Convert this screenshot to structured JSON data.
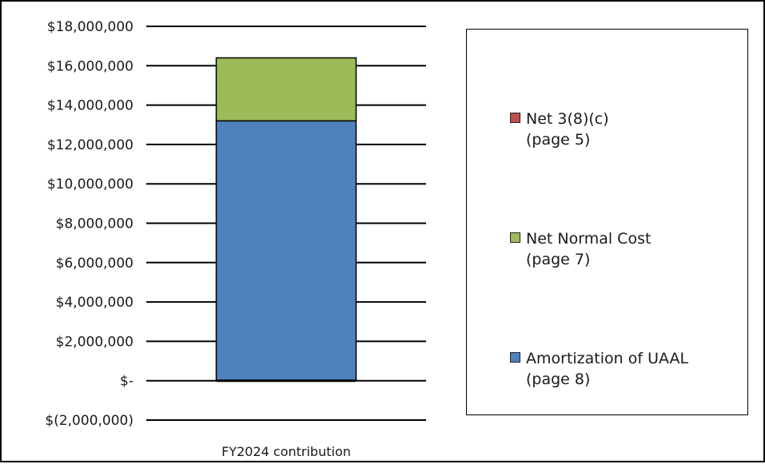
{
  "chart_data": {
    "type": "bar",
    "stacked": true,
    "categories": [
      "FY2024 contribution"
    ],
    "series": [
      {
        "name": "Net 3(8)(c)",
        "name_note": "(page 5)",
        "values": [
          0
        ],
        "color": "#c0504d"
      },
      {
        "name": "Net Normal Cost",
        "name_note": "(page 7)",
        "values": [
          3200000
        ],
        "color": "#9bbb59"
      },
      {
        "name": "Amortization of UAAL",
        "name_note": "(page 8)",
        "values": [
          13200000
        ],
        "color": "#4f81bd"
      }
    ],
    "y_ticks": [
      18000000,
      16000000,
      14000000,
      12000000,
      10000000,
      8000000,
      6000000,
      4000000,
      2000000,
      0,
      -2000000
    ],
    "y_tick_labels": [
      "$18,000,000",
      "$16,000,000",
      "$14,000,000",
      "$12,000,000",
      "$10,000,000",
      "$8,000,000",
      "$6,000,000",
      "$4,000,000",
      "$2,000,000",
      "$-",
      "$(2,000,000)"
    ],
    "ylim": [
      -2000000,
      18000000
    ],
    "grid": true,
    "legend_position": "right"
  }
}
